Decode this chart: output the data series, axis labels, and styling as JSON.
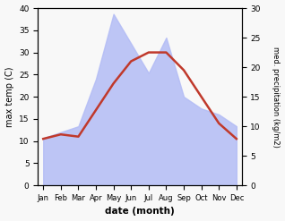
{
  "months": [
    "Jan",
    "Feb",
    "Mar",
    "Apr",
    "May",
    "Jun",
    "Jul",
    "Aug",
    "Sep",
    "Oct",
    "Nov",
    "Dec"
  ],
  "max_temp": [
    10.5,
    11.5,
    11.0,
    17.0,
    23.0,
    28.0,
    30.0,
    30.0,
    26.0,
    20.0,
    14.0,
    10.5
  ],
  "precipitation": [
    8.0,
    9.0,
    10.0,
    18.0,
    29.0,
    24.0,
    19.0,
    25.0,
    15.0,
    13.0,
    12.0,
    10.0
  ],
  "temp_color": "#c0392b",
  "precip_fill_color": "#b3bcf5",
  "precip_fill_alpha": 0.85,
  "ylabel_left": "max temp (C)",
  "ylabel_right": "med. precipitation (kg/m2)",
  "xlabel": "date (month)",
  "ylim_left": [
    0,
    40
  ],
  "ylim_right": [
    0,
    30
  ],
  "bg_color": "#f5f5f5"
}
